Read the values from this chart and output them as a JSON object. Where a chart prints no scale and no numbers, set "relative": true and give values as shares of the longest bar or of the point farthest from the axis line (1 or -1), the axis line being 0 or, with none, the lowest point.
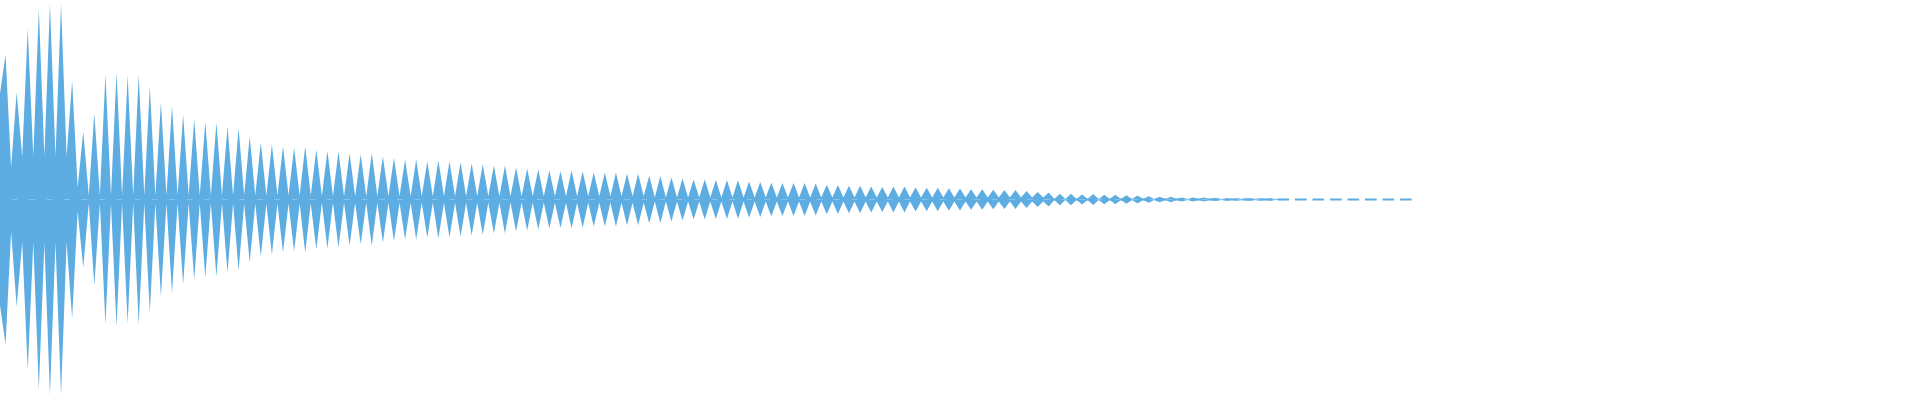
{
  "chart_data": {
    "type": "area",
    "relative": true,
    "categories": [
      null,
      null,
      null,
      null,
      null,
      null,
      null,
      null,
      null,
      null,
      null,
      null,
      null,
      null,
      null,
      null,
      null,
      null,
      null,
      null,
      null,
      null,
      null,
      null,
      null,
      null,
      null,
      null,
      null,
      null,
      null,
      null,
      null,
      null,
      null,
      null,
      null,
      null,
      null,
      null,
      null,
      null,
      null,
      null,
      null,
      null,
      null,
      null,
      null,
      null,
      null,
      null,
      null,
      null,
      null,
      null,
      null,
      null,
      null,
      null,
      null,
      null,
      null,
      null,
      null,
      null,
      null,
      null,
      null,
      null,
      null,
      null,
      null,
      null,
      null,
      null,
      null,
      null,
      null,
      null,
      null,
      null,
      null,
      null,
      null,
      null,
      null,
      null,
      null,
      null,
      null,
      null,
      null,
      null,
      null,
      null,
      null,
      null,
      null,
      null,
      null,
      null,
      null,
      null,
      null,
      null,
      null,
      null,
      null,
      null,
      null,
      null,
      null,
      null,
      null,
      null,
      null,
      null,
      null,
      null,
      null,
      null,
      null,
      null,
      null,
      null,
      null,
      null,
      null,
      null,
      null,
      null,
      null,
      null,
      null,
      null,
      null,
      null,
      null,
      null,
      null,
      null,
      null,
      null,
      null,
      null,
      null,
      null,
      null,
      null,
      null,
      null,
      null,
      null,
      null,
      null,
      null,
      null,
      null,
      null,
      null,
      null,
      null,
      null,
      null,
      null,
      null,
      null,
      null,
      null,
      null,
      null,
      null,
      null,
      null,
      null,
      null,
      null,
      null,
      null,
      null,
      null,
      null,
      null,
      null,
      null,
      null,
      null,
      null,
      null,
      null,
      null,
      null,
      null,
      null,
      null,
      null,
      null,
      null,
      null,
      null,
      null,
      null,
      null,
      null,
      null,
      null,
      null,
      null,
      null,
      null,
      null,
      null,
      null,
      null,
      null,
      null,
      null,
      null,
      null,
      null,
      null,
      null,
      null,
      null,
      null,
      null,
      null,
      null,
      null,
      null,
      null,
      null,
      null,
      null,
      null,
      null,
      null,
      null,
      null,
      null,
      null,
      null,
      null,
      null,
      null,
      null,
      null,
      null,
      null,
      null,
      null,
      null,
      null,
      null,
      null
    ],
    "series": [
      {
        "color": "#5dade2",
        "values": [
          0.542,
          0.742,
          0.164,
          0.548,
          0.22,
          0.874,
          0.22,
          0.972,
          0.22,
          1.0,
          0.22,
          1.0,
          0.22,
          0.608,
          0.062,
          0.348,
          0.02,
          0.44,
          0.02,
          0.64,
          0.02,
          0.65,
          0.02,
          0.634,
          0.02,
          0.64,
          0.02,
          0.578,
          0.02,
          0.496,
          0.02,
          0.48,
          0.02,
          0.434,
          0.02,
          0.41,
          0.02,
          0.398,
          0.02,
          0.394,
          0.02,
          0.374,
          0.02,
          0.364,
          0.02,
          0.322,
          0.02,
          0.292,
          0.02,
          0.282,
          0.02,
          0.272,
          0.02,
          0.266,
          0.02,
          0.272,
          0.02,
          0.256,
          0.016,
          0.25,
          0.016,
          0.246,
          0.016,
          0.236,
          0.016,
          0.23,
          0.016,
          0.236,
          0.016,
          0.22,
          0.016,
          0.214,
          0.016,
          0.204,
          0.016,
          0.204,
          0.016,
          0.194,
          0.016,
          0.2,
          0.016,
          0.194,
          0.016,
          0.19,
          0.016,
          0.184,
          0.016,
          0.18,
          0.016,
          0.174,
          0.016,
          0.174,
          0.016,
          0.164,
          0.016,
          0.158,
          0.016,
          0.154,
          0.016,
          0.148,
          0.016,
          0.144,
          0.016,
          0.148,
          0.016,
          0.144,
          0.016,
          0.138,
          0.016,
          0.138,
          0.016,
          0.138,
          0.016,
          0.132,
          0.016,
          0.132,
          0.016,
          0.122,
          0.01,
          0.12,
          0.01,
          0.112,
          0.01,
          0.108,
          0.01,
          0.102,
          0.01,
          0.102,
          0.01,
          0.1,
          0.01,
          0.1,
          0.01,
          0.098,
          0.01,
          0.092,
          0.01,
          0.09,
          0.01,
          0.086,
          0.01,
          0.084,
          0.01,
          0.084,
          0.01,
          0.084,
          0.01,
          0.082,
          0.01,
          0.076,
          0.01,
          0.074,
          0.01,
          0.07,
          0.01,
          0.07,
          0.01,
          0.066,
          0.01,
          0.064,
          0.01,
          0.066,
          0.01,
          0.066,
          0.01,
          0.062,
          0.01,
          0.06,
          0.01,
          0.06,
          0.01,
          0.058,
          0.01,
          0.056,
          0.01,
          0.052,
          0.01,
          0.052,
          0.01,
          0.05,
          0.01,
          0.048,
          0.01,
          0.048,
          0.01,
          0.044,
          0.01,
          0.038,
          0.01,
          0.036,
          0.002,
          0.03,
          0.002,
          0.03,
          0.002,
          0.026,
          0.002,
          0.028,
          0.002,
          0.024,
          0.002,
          0.024,
          0.002,
          0.022,
          0.002,
          0.02,
          0.002,
          0.016,
          0.002,
          0.014,
          0.002,
          0.014,
          0.002,
          0.01,
          0.002,
          0.01,
          0.002,
          0.01,
          0.002,
          0.008,
          0.002,
          0.006,
          0.002,
          0.006,
          0.002,
          0.006,
          0.002,
          0.006,
          0.002,
          0.006,
          0.002,
          0.004,
          0,
          0,
          0,
          0,
          0,
          0,
          0,
          0,
          0,
          0,
          0,
          0,
          0,
          0,
          0,
          0,
          0,
          0,
          0,
          0,
          0,
          0,
          0,
          0
        ]
      },
      {
        "color": "#5eade2",
        "values": [
          -0.542,
          -0.742,
          -0.164,
          -0.548,
          -0.22,
          -0.874,
          -0.22,
          -0.972,
          -0.22,
          -1.0,
          -0.22,
          -1.0,
          -0.22,
          -0.608,
          -0.062,
          -0.348,
          -0.02,
          -0.44,
          -0.02,
          -0.64,
          -0.02,
          -0.65,
          -0.02,
          -0.634,
          -0.02,
          -0.64,
          -0.02,
          -0.578,
          -0.02,
          -0.496,
          -0.02,
          -0.48,
          -0.02,
          -0.434,
          -0.02,
          -0.41,
          -0.02,
          -0.398,
          -0.02,
          -0.394,
          -0.02,
          -0.374,
          -0.02,
          -0.364,
          -0.02,
          -0.322,
          -0.02,
          -0.292,
          -0.02,
          -0.282,
          -0.02,
          -0.272,
          -0.02,
          -0.266,
          -0.02,
          -0.272,
          -0.02,
          -0.256,
          -0.016,
          -0.25,
          -0.016,
          -0.246,
          -0.016,
          -0.236,
          -0.016,
          -0.23,
          -0.016,
          -0.236,
          -0.016,
          -0.22,
          -0.016,
          -0.214,
          -0.016,
          -0.204,
          -0.016,
          -0.204,
          -0.016,
          -0.194,
          -0.016,
          -0.2,
          -0.016,
          -0.194,
          -0.016,
          -0.19,
          -0.016,
          -0.184,
          -0.016,
          -0.18,
          -0.016,
          -0.174,
          -0.016,
          -0.174,
          -0.016,
          -0.164,
          -0.016,
          -0.158,
          -0.016,
          -0.154,
          -0.016,
          -0.148,
          -0.016,
          -0.144,
          -0.016,
          -0.148,
          -0.016,
          -0.144,
          -0.016,
          -0.138,
          -0.016,
          -0.138,
          -0.016,
          -0.138,
          -0.016,
          -0.132,
          -0.016,
          -0.132,
          -0.016,
          -0.122,
          -0.01,
          -0.12,
          -0.01,
          -0.112,
          -0.01,
          -0.108,
          -0.01,
          -0.102,
          -0.01,
          -0.102,
          -0.01,
          -0.1,
          -0.01,
          -0.1,
          -0.01,
          -0.098,
          -0.01,
          -0.092,
          -0.01,
          -0.09,
          -0.01,
          -0.086,
          -0.01,
          -0.084,
          -0.01,
          -0.084,
          -0.01,
          -0.084,
          -0.01,
          -0.082,
          -0.01,
          -0.076,
          -0.01,
          -0.074,
          -0.01,
          -0.07,
          -0.01,
          -0.07,
          -0.01,
          -0.066,
          -0.01,
          -0.064,
          -0.01,
          -0.066,
          -0.01,
          -0.066,
          -0.01,
          -0.062,
          -0.01,
          -0.06,
          -0.01,
          -0.06,
          -0.01,
          -0.058,
          -0.01,
          -0.056,
          -0.01,
          -0.052,
          -0.01,
          -0.052,
          -0.01,
          -0.05,
          -0.01,
          -0.048,
          -0.01,
          -0.048,
          -0.01,
          -0.044,
          -0.01,
          -0.038,
          -0.01,
          -0.036,
          -0.002,
          -0.03,
          -0.002,
          -0.03,
          -0.002,
          -0.026,
          -0.002,
          -0.028,
          -0.002,
          -0.024,
          -0.002,
          -0.024,
          -0.002,
          -0.022,
          -0.002,
          -0.02,
          -0.002,
          -0.016,
          -0.002,
          -0.014,
          -0.002,
          -0.014,
          -0.002,
          -0.01,
          -0.002,
          -0.01,
          -0.002,
          -0.01,
          -0.002,
          -0.008,
          -0.002,
          -0.006,
          -0.002,
          -0.006,
          -0.002,
          -0.006,
          -0.002,
          -0.006,
          -0.002,
          -0.006,
          -0.002,
          -0.004,
          0,
          0,
          0,
          0,
          0,
          0,
          0,
          0,
          0,
          0,
          0,
          0,
          0,
          0,
          0,
          0,
          0,
          0,
          0,
          0,
          0,
          0,
          0,
          0
        ]
      }
    ],
    "ref_lines": [
      {
        "axis": "y",
        "value": 0,
        "color": "#5dade2",
        "line_style": "dashed"
      }
    ]
  }
}
